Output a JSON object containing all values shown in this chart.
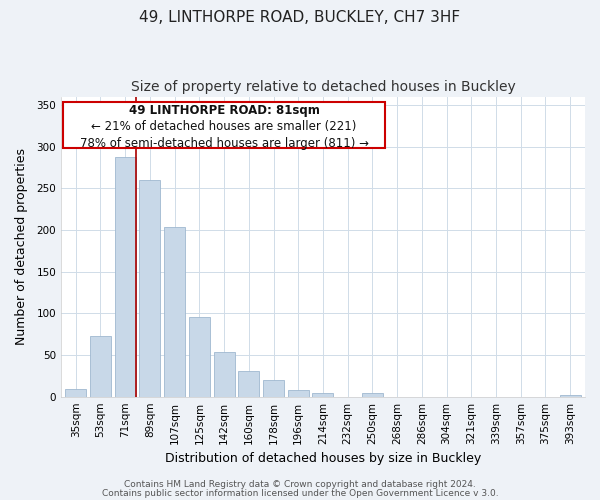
{
  "title": "49, LINTHORPE ROAD, BUCKLEY, CH7 3HF",
  "subtitle": "Size of property relative to detached houses in Buckley",
  "xlabel": "Distribution of detached houses by size in Buckley",
  "ylabel": "Number of detached properties",
  "bar_color": "#c8d8e8",
  "bar_edge_color": "#a0b8d0",
  "categories": [
    "35sqm",
    "53sqm",
    "71sqm",
    "89sqm",
    "107sqm",
    "125sqm",
    "142sqm",
    "160sqm",
    "178sqm",
    "196sqm",
    "214sqm",
    "232sqm",
    "250sqm",
    "268sqm",
    "286sqm",
    "304sqm",
    "321sqm",
    "339sqm",
    "357sqm",
    "375sqm",
    "393sqm"
  ],
  "values": [
    9,
    73,
    287,
    260,
    204,
    96,
    54,
    31,
    20,
    8,
    5,
    0,
    4,
    0,
    0,
    0,
    0,
    0,
    0,
    0,
    2
  ],
  "subject_line_color": "#aa0000",
  "annotation_text_line1": "49 LINTHORPE ROAD: 81sqm",
  "annotation_text_line2": "← 21% of detached houses are smaller (221)",
  "annotation_text_line3": "78% of semi-detached houses are larger (811) →",
  "annotation_box_color": "#ffffff",
  "annotation_border_color": "#cc0000",
  "footer_line1": "Contains HM Land Registry data © Crown copyright and database right 2024.",
  "footer_line2": "Contains public sector information licensed under the Open Government Licence v 3.0.",
  "ylim": [
    0,
    360
  ],
  "yticks": [
    0,
    50,
    100,
    150,
    200,
    250,
    300,
    350
  ],
  "background_color": "#eef2f7",
  "plot_background_color": "#ffffff",
  "grid_color": "#d0dce8",
  "title_fontsize": 11,
  "subtitle_fontsize": 10,
  "axis_label_fontsize": 9,
  "tick_fontsize": 7.5,
  "annotation_fontsize": 8.5,
  "footer_fontsize": 6.5
}
